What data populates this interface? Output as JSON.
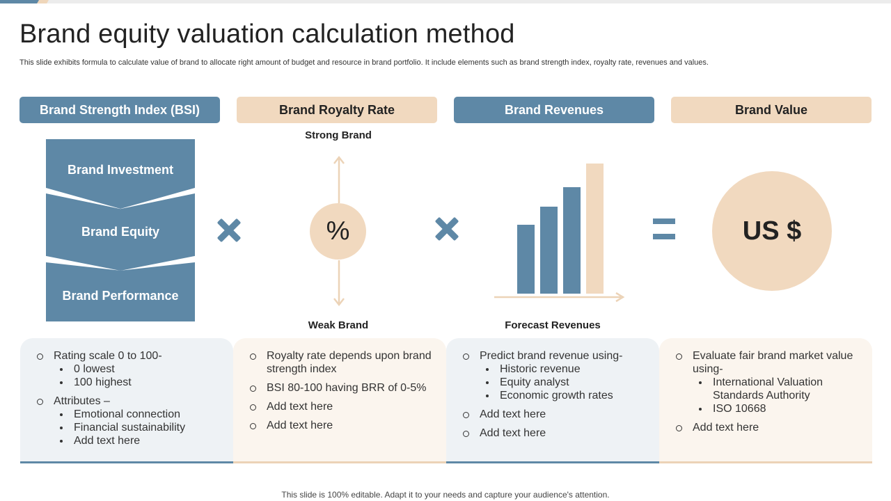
{
  "title": "Brand equity valuation calculation method",
  "subtitle": "This slide exhibits formula to calculate value of brand to allocate right amount of budget and resource in brand portfolio. It include elements such as brand strength index, royalty rate, revenues and values.",
  "colors": {
    "blue": "#5e88a6",
    "beige": "#f1d9bf"
  },
  "headers": [
    "Brand Strength Index (BSI)",
    "Brand Royalty Rate",
    "Brand Revenues",
    "Brand Value"
  ],
  "bsi_chevrons": [
    "Brand Investment",
    "Brand Equity",
    "Brand Performance"
  ],
  "royalty": {
    "top_label": "Strong Brand",
    "bottom_label": "Weak Brand",
    "symbol": "%"
  },
  "revenues": {
    "label": "Forecast Revenues",
    "bar_levels": [
      0.53,
      0.67,
      0.82,
      1.0
    ]
  },
  "value": {
    "symbol": "US $"
  },
  "operators": {
    "multiply_icon": "times-icon",
    "equals_icon": "equals-icon"
  },
  "cards": {
    "bsi": {
      "items": [
        {
          "text": "Rating scale 0 to 100-",
          "sub": [
            "0 lowest",
            "100 highest"
          ]
        },
        {
          "text": "Attributes –",
          "sub": [
            "Emotional connection",
            "Financial sustainability",
            "Add text here"
          ]
        }
      ]
    },
    "royalty": {
      "items": [
        {
          "text": "Royalty rate depends upon brand strength index"
        },
        {
          "text": "BSI 80-100 having BRR of 0-5%"
        },
        {
          "text": "Add text here"
        },
        {
          "text": "Add text here"
        }
      ]
    },
    "revenues": {
      "items": [
        {
          "text": "Predict brand revenue using-",
          "sub": [
            "Historic revenue",
            "Equity analyst",
            "Economic growth rates"
          ]
        },
        {
          "text": "Add text here"
        },
        {
          "text": "Add text here"
        }
      ]
    },
    "value": {
      "items": [
        {
          "text": "Evaluate fair brand market value using-",
          "sub": [
            "International Valuation Standards Authority",
            "ISO 10668"
          ]
        },
        {
          "text": "Add text here"
        }
      ]
    }
  },
  "footer": "This slide is 100% editable. Adapt it to your needs and capture your audience's attention."
}
